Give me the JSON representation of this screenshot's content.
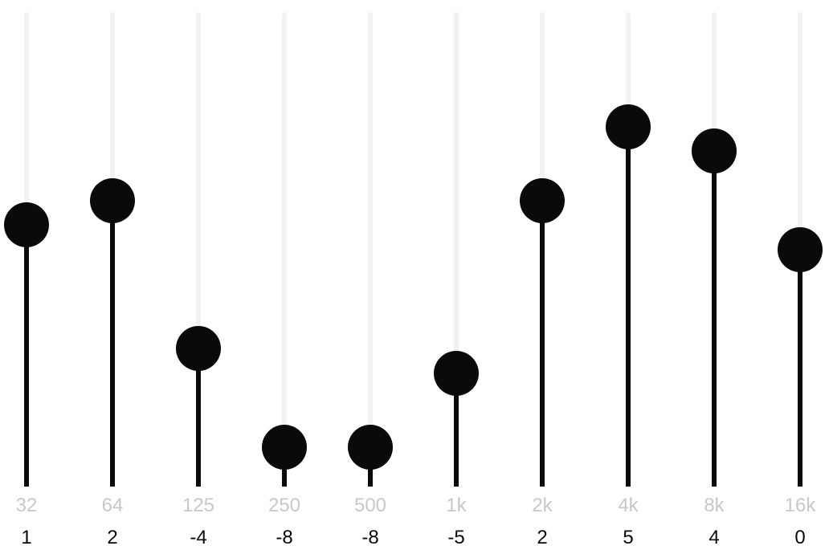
{
  "equalizer": {
    "range_db": [
      -10,
      10
    ],
    "colors": {
      "track": "#f2f2f2",
      "fill": "#0a0a0a",
      "knob": "#0a0a0a",
      "freq_label": "#c8c8c8",
      "value_label": "#0a0a0a"
    },
    "bands": [
      {
        "freq": "32",
        "value": "1"
      },
      {
        "freq": "64",
        "value": "2"
      },
      {
        "freq": "125",
        "value": "-4"
      },
      {
        "freq": "250",
        "value": "-8"
      },
      {
        "freq": "500",
        "value": "-8"
      },
      {
        "freq": "1k",
        "value": "-5"
      },
      {
        "freq": "2k",
        "value": "2"
      },
      {
        "freq": "4k",
        "value": "5"
      },
      {
        "freq": "8k",
        "value": "4"
      },
      {
        "freq": "16k",
        "value": "0"
      }
    ]
  }
}
